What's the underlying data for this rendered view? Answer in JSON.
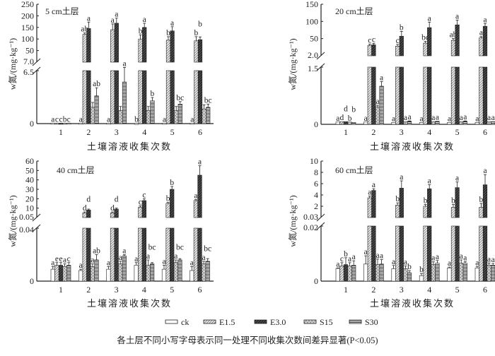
{
  "legend": [
    {
      "key": "ck",
      "label": "ck"
    },
    {
      "key": "E15",
      "label": "E1.5"
    },
    {
      "key": "E30",
      "label": "E3.0"
    },
    {
      "key": "S15",
      "label": "S15"
    },
    {
      "key": "S30",
      "label": "S30"
    }
  ],
  "caption": "各土层不同小写字母表示同一处理不同收集次数间差异显著(P<0.05)",
  "chart_data": [
    {
      "type": "bar",
      "title": "5 cm土层",
      "xlabel": "土壤溶液收集次数",
      "ylabel": "w氮/(mg·kg⁻¹)",
      "categories": [
        "1",
        "2",
        "3",
        "4",
        "5",
        "6"
      ],
      "axis_break": true,
      "upper_ticks": [
        "50",
        "100",
        "150",
        "200",
        "250"
      ],
      "upper_min_label": "7.0",
      "ylim_upper": [
        7,
        250
      ],
      "lower_ticks": [
        "0",
        "6.5"
      ],
      "ylim_lower": [
        0,
        6.5
      ],
      "series": [
        {
          "name": "ck",
          "lower": [
            0.05,
            0.05,
            0.05,
            0.03,
            0.05,
            0.05
          ],
          "upper": [
            null,
            null,
            null,
            null,
            null,
            null
          ],
          "err": [
            0,
            0,
            0,
            0,
            0,
            0
          ],
          "letters": [
            "a",
            "a",
            "a",
            "b",
            "a",
            "a"
          ]
        },
        {
          "name": "E1.5",
          "lower": [
            0.05,
            null,
            null,
            null,
            null,
            null
          ],
          "upper": [
            null,
            120,
            140,
            100,
            95,
            92
          ],
          "err": [
            0,
            6,
            25,
            18,
            15,
            18
          ],
          "letters": [
            "c",
            "ab",
            "a",
            "b",
            "b",
            "b"
          ]
        },
        {
          "name": "E3.0",
          "lower": [
            0.05,
            null,
            null,
            null,
            null,
            null
          ],
          "upper": [
            null,
            145,
            168,
            150,
            135,
            97
          ],
          "err": [
            0,
            28,
            22,
            18,
            18,
            12
          ],
          "letters": [
            "c",
            "a",
            "a",
            "a",
            "a",
            "b"
          ]
        },
        {
          "name": "S15",
          "lower": [
            0.05,
            2.0,
            1.6,
            1.6,
            1.6,
            1.8
          ],
          "upper": [
            null,
            null,
            null,
            null,
            null,
            null
          ],
          "err": [
            0,
            0.6,
            0.5,
            0.5,
            0.5,
            0.5
          ],
          "letters": [
            "b",
            "",
            "",
            "",
            "",
            ""
          ]
        },
        {
          "name": "S30",
          "lower": [
            0.05,
            3.4,
            5.1,
            2.8,
            2.4,
            2.0
          ],
          "upper": [
            null,
            null,
            null,
            null,
            null,
            null
          ],
          "err": [
            0,
            1.0,
            1.8,
            0.4,
            0.3,
            0.4
          ],
          "letters": [
            "c",
            "ab",
            "a",
            "b",
            "bc",
            "bc"
          ]
        }
      ]
    },
    {
      "type": "bar",
      "title": "20 cm土层",
      "xlabel": "土壤溶液收集次数",
      "ylabel": "w氮/(mg·kg⁻¹)",
      "categories": [
        "1",
        "2",
        "3",
        "4",
        "5",
        "6"
      ],
      "axis_break": true,
      "upper_ticks": [
        "50",
        "100",
        "150"
      ],
      "upper_min_label": "2.0",
      "ylim_upper": [
        2,
        150
      ],
      "lower_ticks": [
        "0",
        "1.5"
      ],
      "ylim_lower": [
        0,
        1.5
      ],
      "series": [
        {
          "name": "ck",
          "lower": [
            0.06,
            0.06,
            0.05,
            0.05,
            0.05,
            0.05
          ],
          "upper": [
            null,
            null,
            null,
            null,
            null,
            null
          ],
          "err": [
            0,
            0,
            0,
            0,
            0,
            0
          ],
          "letters": [
            "a",
            "a",
            "a",
            "a",
            "a",
            "a"
          ]
        },
        {
          "name": "E1.5",
          "lower": [
            0.07,
            null,
            null,
            null,
            null,
            null
          ],
          "upper": [
            null,
            30,
            28,
            37,
            45,
            52
          ],
          "err": [
            0,
            4,
            5,
            5,
            5,
            4
          ],
          "letters": [
            "d",
            "c",
            "c",
            "bc",
            "ab",
            "a"
          ]
        },
        {
          "name": "E3.0",
          "lower": [
            0.07,
            null,
            null,
            null,
            null,
            null
          ],
          "upper": [
            null,
            32,
            57,
            82,
            90,
            86
          ],
          "err": [
            0,
            4,
            14,
            16,
            14,
            8
          ],
          "letters": [
            "d",
            "c",
            "b",
            "a",
            "a",
            "a"
          ]
        },
        {
          "name": "S15",
          "lower": [
            0.06,
            0.45,
            0.07,
            0.07,
            0.07,
            0.07
          ],
          "upper": [
            null,
            null,
            null,
            null,
            null,
            null
          ],
          "err": [
            0,
            0.05,
            0,
            0,
            0,
            0
          ],
          "letters": [
            "b",
            "a",
            "a",
            "a",
            "a",
            "a"
          ]
        },
        {
          "name": "S30",
          "lower": [
            0.05,
            1.0,
            0.08,
            0.08,
            0.08,
            0.07
          ],
          "upper": [
            null,
            null,
            null,
            null,
            null,
            null
          ],
          "err": [
            0,
            0.12,
            0.01,
            0,
            0.01,
            0
          ],
          "letters": [
            "b",
            "a",
            "a",
            "a",
            "a",
            "a"
          ]
        }
      ]
    },
    {
      "type": "bar",
      "title": "40 cm土层",
      "xlabel": "土壤溶液收集次数",
      "ylabel": "w氮/(mg·kg⁻¹)",
      "categories": [
        "1",
        "2",
        "3",
        "4",
        "5",
        "6"
      ],
      "axis_break": true,
      "upper_ticks": [
        "10",
        "20",
        "30",
        "40",
        "50",
        "60"
      ],
      "upper_min_label": "0.05",
      "ylim_upper": [
        0.05,
        60
      ],
      "lower_ticks": [
        "0",
        "0.04"
      ],
      "ylim_lower": [
        0,
        0.04
      ],
      "series": [
        {
          "name": "ck",
          "lower": [
            0.009,
            0.008,
            0.009,
            0.012,
            0.009,
            0.008
          ],
          "upper": [
            null,
            null,
            null,
            null,
            null,
            null
          ],
          "err": [
            0.002,
            0.001,
            0.002,
            0.002,
            0.003,
            0.003
          ],
          "letters": [
            "a",
            "a",
            "a",
            "a",
            "a",
            "a"
          ]
        },
        {
          "name": "E1.5",
          "lower": [
            0.012,
            null,
            null,
            null,
            null,
            null
          ],
          "upper": [
            null,
            5,
            5,
            11,
            15,
            18
          ],
          "err": [
            0.002,
            1,
            1,
            1.5,
            1,
            1
          ],
          "letters": [
            "e",
            "d",
            "d",
            "c",
            "b",
            "a"
          ]
        },
        {
          "name": "E3.0",
          "lower": [
            0.012,
            null,
            null,
            null,
            null,
            null
          ],
          "upper": [
            null,
            8,
            9,
            18,
            30,
            45
          ],
          "err": [
            0.002,
            1,
            1,
            2,
            3,
            10
          ],
          "letters": [
            "e",
            "d",
            "d",
            "c",
            "b",
            "a"
          ]
        },
        {
          "name": "S15",
          "lower": [
            0.011,
            0.011,
            0.013,
            0.012,
            0.014,
            0.013
          ],
          "upper": [
            null,
            null,
            null,
            null,
            null,
            null
          ],
          "err": [
            0.002,
            0.002,
            0.002,
            0.004,
            0.002,
            0.002
          ],
          "letters": [
            "a",
            "a",
            "a",
            "a",
            "a",
            "a"
          ]
        },
        {
          "name": "S30",
          "lower": [
            0.012,
            0.016,
            0.019,
            0.013,
            0.016,
            0.015
          ],
          "upper": [
            null,
            null,
            null,
            null,
            null,
            null
          ],
          "err": [
            0.002,
            0.004,
            0.001,
            0.001,
            0.001,
            0.002
          ],
          "letters": [
            "c",
            "ab",
            "a",
            "bc",
            "bc",
            "bc"
          ]
        }
      ]
    },
    {
      "type": "bar",
      "title": "60 cm土层",
      "xlabel": "土壤溶液收集次数",
      "ylabel": "w氮/(mg·kg⁻¹)",
      "categories": [
        "1",
        "2",
        "3",
        "4",
        "5",
        "6"
      ],
      "axis_break": true,
      "upper_ticks": [
        "2",
        "4",
        "6",
        "8",
        "10"
      ],
      "upper_min_label": "0.03",
      "ylim_upper": [
        0.03,
        10
      ],
      "lower_ticks": [
        "0",
        "0.02"
      ],
      "ylim_lower": [
        0,
        0.02
      ],
      "series": [
        {
          "name": "ck",
          "lower": [
            0.0046,
            0.0062,
            0.0045,
            0.002,
            0.0048,
            0.0048
          ],
          "upper": [
            null,
            null,
            null,
            null,
            null,
            null
          ],
          "err": [
            0.0002,
            0.003,
            0.0012,
            0.0008,
            0.0003,
            0.0005
          ],
          "letters": [
            "a",
            "a",
            "a",
            "b",
            "a",
            "a"
          ]
        },
        {
          "name": "E1.5",
          "lower": [
            0.0055,
            null,
            null,
            null,
            null,
            null
          ],
          "upper": [
            null,
            3.5,
            2.2,
            2.0,
            1.8,
            1.8
          ],
          "err": [
            0.0012,
            0.3,
            0.4,
            0.3,
            0.5,
            0.7
          ],
          "letters": [
            "c",
            "a",
            "b",
            "b",
            "b",
            "b"
          ]
        },
        {
          "name": "E3.0",
          "lower": [
            0.006,
            null,
            null,
            null,
            null,
            null
          ],
          "upper": [
            null,
            4.8,
            5.2,
            5.1,
            5.3,
            5.8
          ],
          "err": [
            0.0025,
            0.3,
            1.3,
            0.7,
            1.0,
            1.8
          ],
          "letters": [
            "b",
            "a",
            "a",
            "a",
            "a",
            "a"
          ]
        },
        {
          "name": "S15",
          "lower": [
            0.0055,
            0.006,
            0.0045,
            0.006,
            0.0065,
            0.0058
          ],
          "upper": [
            null,
            null,
            null,
            null,
            null,
            null
          ],
          "err": [
            0.0012,
            0.002,
            0.001,
            0.001,
            0.0012,
            0.0008
          ],
          "letters": [
            "a",
            "a",
            "a",
            "a",
            "a",
            "a"
          ]
        },
        {
          "name": "S30",
          "lower": [
            0.0058,
            0.0062,
            0.003,
            0.0065,
            0.0065,
            0.0058
          ],
          "upper": [
            null,
            null,
            null,
            null,
            null,
            null
          ],
          "err": [
            0.0016,
            0.0016,
            0.0008,
            0.001,
            0.0006,
            0.0006
          ],
          "letters": [
            "a",
            "a",
            "b",
            "a",
            "a",
            "a"
          ]
        }
      ]
    }
  ]
}
